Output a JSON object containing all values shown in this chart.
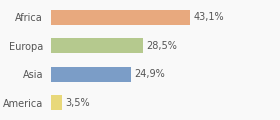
{
  "categories": [
    "Africa",
    "Europa",
    "Asia",
    "America"
  ],
  "values": [
    43.1,
    28.5,
    24.9,
    3.5
  ],
  "labels": [
    "43,1%",
    "28,5%",
    "24,9%",
    "3,5%"
  ],
  "bar_colors": [
    "#e8a97e",
    "#b5c98e",
    "#7b9dc7",
    "#e8d87a"
  ],
  "background_color": "#f9f9f9",
  "xlim": [
    0,
    70
  ],
  "label_fontsize": 7.0,
  "tick_fontsize": 7.0
}
